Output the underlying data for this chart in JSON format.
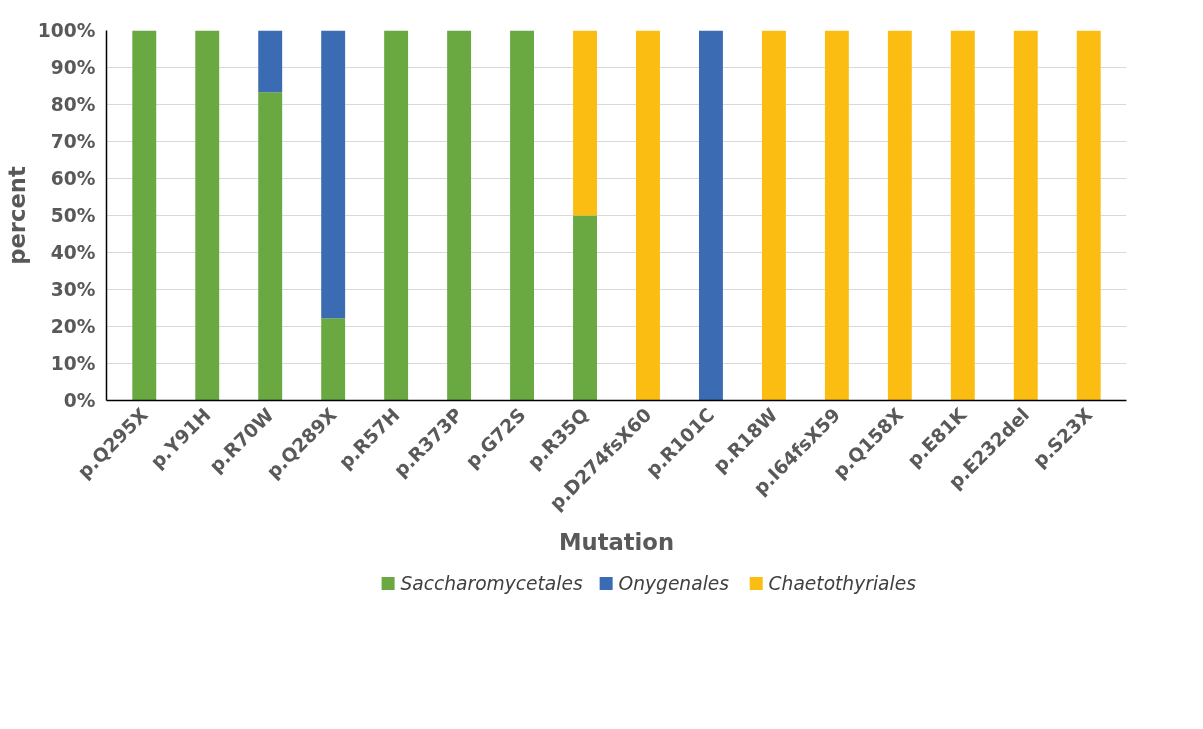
{
  "chart_data": {
    "type": "bar",
    "stacked": true,
    "xlabel": "Mutation",
    "ylabel": "percent",
    "categories": [
      "p.Q295X",
      "p.Y91H",
      "p.R70W",
      "p.Q289X",
      "p.R57H",
      "p.R373P",
      "p.G72S",
      "p.R35Q",
      "p.D274fsX60",
      "p.R101C",
      "p.R18W",
      "p.I64fsX59",
      "p.Q158X",
      "p.E81K",
      "p.E232del",
      "p.S23X"
    ],
    "series": [
      {
        "name": "Saccharomycetales",
        "color": "#6aa842",
        "values": [
          100,
          100,
          83.3,
          22.2,
          100,
          100,
          100,
          50,
          0,
          0,
          0,
          0,
          0,
          0,
          0,
          0
        ]
      },
      {
        "name": "Onygenales",
        "color": "#3b6bb3",
        "values": [
          0,
          0,
          16.7,
          77.8,
          0,
          0,
          0,
          0,
          0,
          100,
          0,
          0,
          0,
          0,
          0,
          0
        ]
      },
      {
        "name": "Chaetothyriales",
        "color": "#fcbd12",
        "values": [
          0,
          0,
          0,
          0,
          0,
          0,
          0,
          50,
          100,
          0,
          100,
          100,
          100,
          100,
          100,
          100
        ]
      }
    ],
    "ylim": [
      0,
      100
    ],
    "yticks": [
      {
        "value": 0,
        "label": "0%"
      },
      {
        "value": 10,
        "label": "10%"
      },
      {
        "value": 20,
        "label": "20%"
      },
      {
        "value": 30,
        "label": "30%"
      },
      {
        "value": 40,
        "label": "40%"
      },
      {
        "value": 50,
        "label": "50%"
      },
      {
        "value": 60,
        "label": "60%"
      },
      {
        "value": 70,
        "label": "70%"
      },
      {
        "value": 80,
        "label": "80%"
      },
      {
        "value": 90,
        "label": "90%"
      },
      {
        "value": 100,
        "label": "100%"
      }
    ],
    "grid": "y",
    "legend": "bottom"
  }
}
